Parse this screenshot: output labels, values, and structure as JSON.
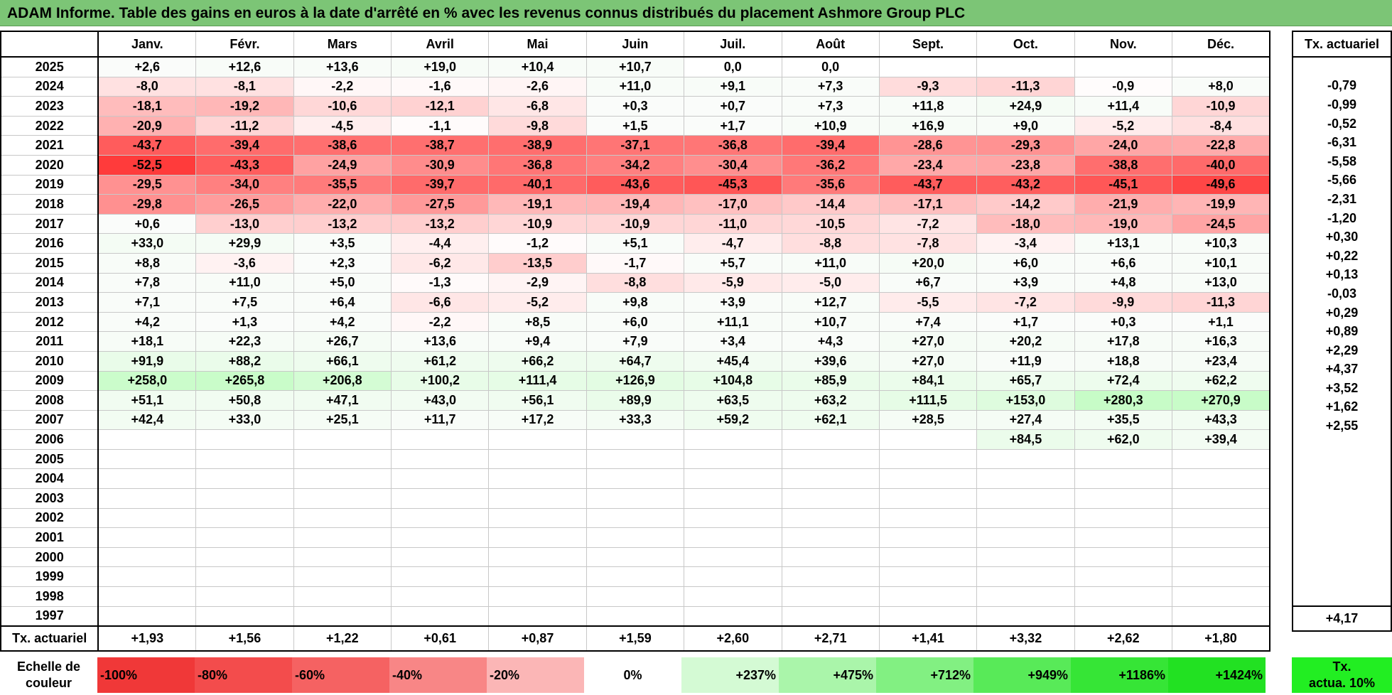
{
  "title": "ADAM Informe. Table des gains en euros à la date d'arrêté en % avec les revenus connus distribués du placement Ashmore Group PLC",
  "months": [
    "Janv.",
    "Févr.",
    "Mars",
    "Avril",
    "Mai",
    "Juin",
    "Juil.",
    "Août",
    "Sept.",
    "Oct.",
    "Nov.",
    "Déc."
  ],
  "side_header": "Tx. actuariel",
  "rows": [
    {
      "year": "2025",
      "cells": [
        "+2,6",
        "+12,6",
        "+13,6",
        "+19,0",
        "+10,4",
        "+10,7",
        "0,0",
        "0,0",
        "",
        "",
        "",
        ""
      ],
      "rate": ""
    },
    {
      "year": "2024",
      "cells": [
        "-8,0",
        "-8,1",
        "-2,2",
        "-1,6",
        "-2,6",
        "+11,0",
        "+9,1",
        "+7,3",
        "-9,3",
        "-11,3",
        "-0,9",
        "+8,0"
      ],
      "rate": "-0,79"
    },
    {
      "year": "2023",
      "cells": [
        "-18,1",
        "-19,2",
        "-10,6",
        "-12,1",
        "-6,8",
        "+0,3",
        "+0,7",
        "+7,3",
        "+11,8",
        "+24,9",
        "+11,4",
        "-10,9"
      ],
      "rate": "-0,99"
    },
    {
      "year": "2022",
      "cells": [
        "-20,9",
        "-11,2",
        "-4,5",
        "-1,1",
        "-9,8",
        "+1,5",
        "+1,7",
        "+10,9",
        "+16,9",
        "+9,0",
        "-5,2",
        "-8,4"
      ],
      "rate": "-0,52"
    },
    {
      "year": "2021",
      "cells": [
        "-43,7",
        "-39,4",
        "-38,6",
        "-38,7",
        "-38,9",
        "-37,1",
        "-36,8",
        "-39,4",
        "-28,6",
        "-29,3",
        "-24,0",
        "-22,8"
      ],
      "rate": "-6,31"
    },
    {
      "year": "2020",
      "cells": [
        "-52,5",
        "-43,3",
        "-24,9",
        "-30,9",
        "-36,8",
        "-34,2",
        "-30,4",
        "-36,2",
        "-23,4",
        "-23,8",
        "-38,8",
        "-40,0"
      ],
      "rate": "-5,58"
    },
    {
      "year": "2019",
      "cells": [
        "-29,5",
        "-34,0",
        "-35,5",
        "-39,7",
        "-40,1",
        "-43,6",
        "-45,3",
        "-35,6",
        "-43,7",
        "-43,2",
        "-45,1",
        "-49,6"
      ],
      "rate": "-5,66"
    },
    {
      "year": "2018",
      "cells": [
        "-29,8",
        "-26,5",
        "-22,0",
        "-27,5",
        "-19,1",
        "-19,4",
        "-17,0",
        "-14,4",
        "-17,1",
        "-14,2",
        "-21,9",
        "-19,9"
      ],
      "rate": "-2,31"
    },
    {
      "year": "2017",
      "cells": [
        "+0,6",
        "-13,0",
        "-13,2",
        "-13,2",
        "-10,9",
        "-10,9",
        "-11,0",
        "-10,5",
        "-7,2",
        "-18,0",
        "-19,0",
        "-24,5"
      ],
      "rate": "-1,20"
    },
    {
      "year": "2016",
      "cells": [
        "+33,0",
        "+29,9",
        "+3,5",
        "-4,4",
        "-1,2",
        "+5,1",
        "-4,7",
        "-8,8",
        "-7,8",
        "-3,4",
        "+13,1",
        "+10,3"
      ],
      "rate": "+0,30"
    },
    {
      "year": "2015",
      "cells": [
        "+8,8",
        "-3,6",
        "+2,3",
        "-6,2",
        "-13,5",
        "-1,7",
        "+5,7",
        "+11,0",
        "+20,0",
        "+6,0",
        "+6,6",
        "+10,1"
      ],
      "rate": "+0,22"
    },
    {
      "year": "2014",
      "cells": [
        "+7,8",
        "+11,0",
        "+5,0",
        "-1,3",
        "-2,9",
        "-8,8",
        "-5,9",
        "-5,0",
        "+6,7",
        "+3,9",
        "+4,8",
        "+13,0"
      ],
      "rate": "+0,13"
    },
    {
      "year": "2013",
      "cells": [
        "+7,1",
        "+7,5",
        "+6,4",
        "-6,6",
        "-5,2",
        "+9,8",
        "+3,9",
        "+12,7",
        "-5,5",
        "-7,2",
        "-9,9",
        "-11,3"
      ],
      "rate": "-0,03"
    },
    {
      "year": "2012",
      "cells": [
        "+4,2",
        "+1,3",
        "+4,2",
        "-2,2",
        "+8,5",
        "+6,0",
        "+11,1",
        "+10,7",
        "+7,4",
        "+1,7",
        "+0,3",
        "+1,1"
      ],
      "rate": "+0,29"
    },
    {
      "year": "2011",
      "cells": [
        "+18,1",
        "+22,3",
        "+26,7",
        "+13,6",
        "+9,4",
        "+7,9",
        "+3,4",
        "+4,3",
        "+27,0",
        "+20,2",
        "+17,8",
        "+16,3"
      ],
      "rate": "+0,89"
    },
    {
      "year": "2010",
      "cells": [
        "+91,9",
        "+88,2",
        "+66,1",
        "+61,2",
        "+66,2",
        "+64,7",
        "+45,4",
        "+39,6",
        "+27,0",
        "+11,9",
        "+18,8",
        "+23,4"
      ],
      "rate": "+2,29"
    },
    {
      "year": "2009",
      "cells": [
        "+258,0",
        "+265,8",
        "+206,8",
        "+100,2",
        "+111,4",
        "+126,9",
        "+104,8",
        "+85,9",
        "+84,1",
        "+65,7",
        "+72,4",
        "+62,2"
      ],
      "rate": "+4,37"
    },
    {
      "year": "2008",
      "cells": [
        "+51,1",
        "+50,8",
        "+47,1",
        "+43,0",
        "+56,1",
        "+89,9",
        "+63,5",
        "+63,2",
        "+111,5",
        "+153,0",
        "+280,3",
        "+270,9"
      ],
      "rate": "+3,52"
    },
    {
      "year": "2007",
      "cells": [
        "+42,4",
        "+33,0",
        "+25,1",
        "+11,7",
        "+17,2",
        "+33,3",
        "+59,2",
        "+62,1",
        "+28,5",
        "+27,4",
        "+35,5",
        "+43,3"
      ],
      "rate": "+1,62"
    },
    {
      "year": "2006",
      "cells": [
        "",
        "",
        "",
        "",
        "",
        "",
        "",
        "",
        "",
        "+84,5",
        "+62,0",
        "+39,4"
      ],
      "rate": "+2,55"
    },
    {
      "year": "2005",
      "cells": [
        "",
        "",
        "",
        "",
        "",
        "",
        "",
        "",
        "",
        "",
        "",
        ""
      ],
      "rate": ""
    },
    {
      "year": "2004",
      "cells": [
        "",
        "",
        "",
        "",
        "",
        "",
        "",
        "",
        "",
        "",
        "",
        ""
      ],
      "rate": ""
    },
    {
      "year": "2003",
      "cells": [
        "",
        "",
        "",
        "",
        "",
        "",
        "",
        "",
        "",
        "",
        "",
        ""
      ],
      "rate": ""
    },
    {
      "year": "2002",
      "cells": [
        "",
        "",
        "",
        "",
        "",
        "",
        "",
        "",
        "",
        "",
        "",
        ""
      ],
      "rate": ""
    },
    {
      "year": "2001",
      "cells": [
        "",
        "",
        "",
        "",
        "",
        "",
        "",
        "",
        "",
        "",
        "",
        ""
      ],
      "rate": ""
    },
    {
      "year": "2000",
      "cells": [
        "",
        "",
        "",
        "",
        "",
        "",
        "",
        "",
        "",
        "",
        "",
        ""
      ],
      "rate": ""
    },
    {
      "year": "1999",
      "cells": [
        "",
        "",
        "",
        "",
        "",
        "",
        "",
        "",
        "",
        "",
        "",
        ""
      ],
      "rate": ""
    },
    {
      "year": "1998",
      "cells": [
        "",
        "",
        "",
        "",
        "",
        "",
        "",
        "",
        "",
        "",
        "",
        ""
      ],
      "rate": ""
    },
    {
      "year": "1997",
      "cells": [
        "",
        "",
        "",
        "",
        "",
        "",
        "",
        "",
        "",
        "",
        "",
        ""
      ],
      "rate": ""
    }
  ],
  "footer": {
    "label": "Tx. actuariel",
    "values": [
      "+1,93",
      "+1,56",
      "+1,22",
      "+0,61",
      "+0,87",
      "+1,59",
      "+2,60",
      "+2,71",
      "+1,41",
      "+3,32",
      "+2,62",
      "+1,80"
    ],
    "overall": "+4,17"
  },
  "scale": {
    "label_line1": "Echelle de",
    "label_line2": "couleur",
    "steps": [
      {
        "label": "-100%",
        "color": "#f03838",
        "kind": "neg"
      },
      {
        "label": "-80%",
        "color": "#f34c4c",
        "kind": "neg"
      },
      {
        "label": "-60%",
        "color": "#f56262",
        "kind": "neg"
      },
      {
        "label": "-40%",
        "color": "#f88686",
        "kind": "neg"
      },
      {
        "label": "-20%",
        "color": "#fbb6b6",
        "kind": "neg"
      },
      {
        "label": "0%",
        "color": "#ffffff",
        "kind": "zero"
      },
      {
        "label": "+237%",
        "color": "#d4fad4",
        "kind": "pos"
      },
      {
        "label": "+475%",
        "color": "#aaf5aa",
        "kind": "pos"
      },
      {
        "label": "+712%",
        "color": "#82f082",
        "kind": "pos"
      },
      {
        "label": "+949%",
        "color": "#58ea58",
        "kind": "pos"
      },
      {
        "label": "+1186%",
        "color": "#36e536",
        "kind": "pos"
      },
      {
        "label": "+1424%",
        "color": "#22e122",
        "kind": "pos"
      }
    ],
    "side_line1": "Tx.",
    "side_line2": "actua. 10%",
    "side_color": "#22ee22"
  }
}
